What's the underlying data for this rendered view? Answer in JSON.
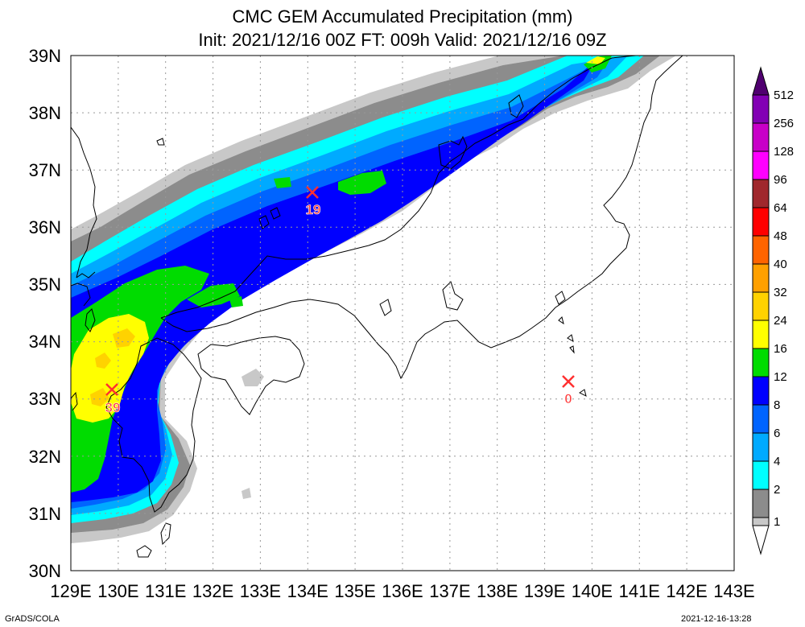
{
  "title_line1": "CMC GEM Accumulated Precipitation (mm)",
  "title_line2": "Init: 2021/12/16 00Z  FT: 009h  Valid: 2021/12/16 09Z",
  "lat_labels": [
    "39N",
    "38N",
    "37N",
    "36N",
    "35N",
    "34N",
    "33N",
    "32N",
    "31N",
    "30N"
  ],
  "lon_labels": [
    "129E",
    "130E",
    "131E",
    "132E",
    "133E",
    "134E",
    "135E",
    "136E",
    "137E",
    "138E",
    "139E",
    "140E",
    "141E",
    "142E",
    "143E"
  ],
  "colorbar": {
    "levels": [
      "512",
      "256",
      "128",
      "96",
      "64",
      "48",
      "40",
      "32",
      "24",
      "16",
      "12",
      "8",
      "6",
      "4",
      "2",
      "1"
    ],
    "colors": {
      "1": "#c8c8c8",
      "2": "#8c8c8c",
      "4": "#00ffff",
      "6": "#00aaff",
      "8": "#0064ff",
      "12": "#0000ff",
      "16": "#00dc00",
      "24": "#ffff00",
      "32": "#ffd200",
      "40": "#ffa000",
      "48": "#ff6400",
      "64": "#ff0000",
      "96": "#a0282d",
      "128": "#ff00ff",
      "256": "#c800c8",
      "512": "#8200b4"
    }
  },
  "station_markers": [
    {
      "label": "39",
      "lon": 129.9,
      "lat": 33.2
    },
    {
      "label": "19",
      "lon": 134.1,
      "lat": 36.6
    },
    {
      "label": "0",
      "lon": 139.5,
      "lat": 33.3
    }
  ],
  "footer_left": "GrADS/COLA",
  "footer_right": "2021-12-16-13:28"
}
